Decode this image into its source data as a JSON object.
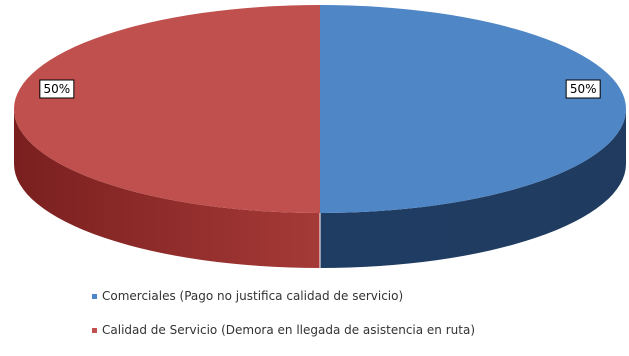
{
  "chart_data": {
    "type": "pie",
    "title": "",
    "categories": [
      "Comerciales (Pago no justifica calidad de servicio)",
      "Calidad de Servicio (Demora en llegada de asistencia en ruta)"
    ],
    "values": [
      50,
      50
    ],
    "value_labels": [
      "50%",
      "50%"
    ],
    "colors": [
      "#4f86c6",
      "#c0504d"
    ],
    "style": "3d",
    "legend_placement": "bottom"
  }
}
